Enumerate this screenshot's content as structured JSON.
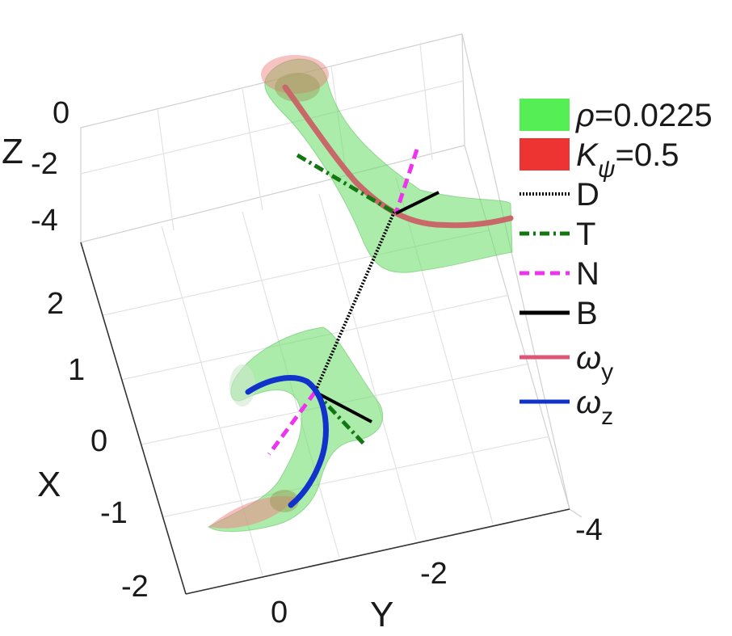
{
  "chart_data": {
    "type": "3d-surface",
    "xlabel": "X",
    "ylabel": "Y",
    "zlabel": "Z",
    "x_ticks": [
      "2",
      "1",
      "0",
      "-1",
      "-2"
    ],
    "y_ticks": [
      "0",
      "-2",
      "-4"
    ],
    "z_ticks": [
      "0",
      "-2",
      "-4"
    ],
    "xlim": [
      -2,
      2.5
    ],
    "ylim": [
      -4,
      0.5
    ],
    "zlim": [
      -4.5,
      0
    ],
    "grid": true,
    "legend_position": "right",
    "legend": [
      {
        "key": "rho",
        "symbol": "ρ",
        "text": "=0.0225",
        "color": "#55ee55",
        "style": "patch"
      },
      {
        "key": "kpsi",
        "symbol": "K",
        "sub": "ψ",
        "text": "=0.5",
        "color": "#ee3333",
        "style": "patch"
      },
      {
        "key": "D",
        "text": "D",
        "color": "#000000",
        "style": "dotted"
      },
      {
        "key": "T",
        "text": "T",
        "color": "#117711",
        "style": "dashdot"
      },
      {
        "key": "N",
        "text": "N",
        "color": "#ee33ee",
        "style": "dashed"
      },
      {
        "key": "B",
        "text": "B",
        "color": "#000000",
        "style": "solid"
      },
      {
        "key": "wy",
        "symbol": "ω",
        "sub": "y",
        "text": "",
        "color": "#dd5577",
        "style": "solid"
      },
      {
        "key": "wz",
        "symbol": "ω",
        "sub": "z",
        "text": "",
        "color": "#1133cc",
        "style": "solid"
      }
    ]
  }
}
